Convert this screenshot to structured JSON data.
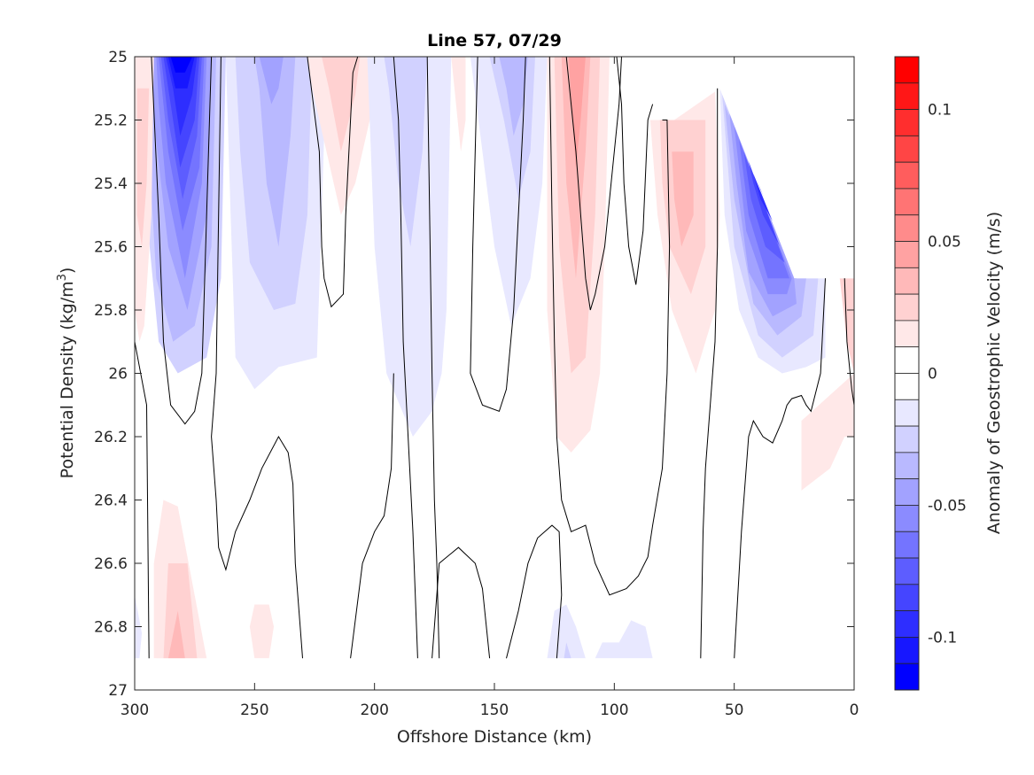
{
  "chart_data": {
    "type": "heatmap",
    "subtype": "filled-contour",
    "title": "Line 57, 07/29",
    "xlabel": "Offshore Distance (km)",
    "ylabel": "Potential Density (kg/m",
    "ylabel_sup": "3",
    "ylabel_end": ")",
    "xlim": [
      300,
      0
    ],
    "ylim": [
      25,
      27
    ],
    "y_reversed": true,
    "x_reversed": true,
    "xticks": [
      300,
      250,
      200,
      150,
      100,
      50,
      0
    ],
    "xtick_labels": [
      "300",
      "250",
      "200",
      "150",
      "100",
      "50",
      "0"
    ],
    "yticks": [
      25,
      25.2,
      25.4,
      25.6,
      25.8,
      26,
      26.2,
      26.4,
      26.6,
      26.8,
      27
    ],
    "ytick_labels": [
      "25",
      "25.2",
      "25.4",
      "25.6",
      "25.8",
      "26",
      "26.2",
      "26.4",
      "26.6",
      "26.8",
      "27"
    ],
    "grid": false,
    "colorbar": {
      "label": "Anomaly of Geostrophic Velocity (m/s)",
      "range": [
        -0.12,
        0.12
      ],
      "n_levels": 22,
      "ticks": [
        0.1,
        0.05,
        0,
        -0.05,
        -0.1
      ],
      "tick_labels": [
        "0.1",
        "0.05",
        "0",
        "-0.05",
        "-0.1"
      ],
      "colors_top_to_bottom": [
        "#ff0000",
        "#ff1717",
        "#ff2e2e",
        "#ff4545",
        "#ff5d5d",
        "#ff7474",
        "#ff8b8b",
        "#ffa2a2",
        "#ffb9b9",
        "#ffd1d1",
        "#ffe8e8",
        "#ffffff",
        "#ffffff",
        "#e8e8ff",
        "#d1d1ff",
        "#b9b9ff",
        "#a2a2ff",
        "#8b8bff",
        "#7474ff",
        "#5d5dff",
        "#4545ff",
        "#2e2eff",
        "#1717ff",
        "#0000ff"
      ],
      "placement": "right"
    },
    "zero_contour_color": "#000000",
    "features": [
      {
        "name": "strong negative core",
        "x_center_km": 280,
        "sigma_top": 25.0,
        "sigma_bottom": 26.0,
        "min_value": -0.12
      },
      {
        "name": "negative band",
        "x_center_km": 242,
        "sigma_top": 25.0,
        "sigma_bottom": 26.05,
        "min_value": -0.04
      },
      {
        "name": "positive band",
        "x_center_km": 215,
        "sigma_top": 25.0,
        "sigma_bottom": 25.5,
        "min_value": 0.02
      },
      {
        "name": "negative band",
        "x_center_km": 185,
        "sigma_top": 25.0,
        "sigma_bottom": 26.2,
        "min_value": -0.03
      },
      {
        "name": "negative band",
        "x_center_km": 143,
        "sigma_top": 25.0,
        "sigma_bottom": 26.0,
        "min_value": -0.04
      },
      {
        "name": "positive band",
        "x_center_km": 118,
        "sigma_top": 25.0,
        "sigma_bottom": 26.25,
        "min_value": 0.04
      },
      {
        "name": "positive band",
        "x_center_km": 72,
        "sigma_top": 25.2,
        "sigma_bottom": 26.0,
        "min_value": 0.04
      },
      {
        "name": "strong negative nearshore",
        "x_center_km": 40,
        "sigma_top": 25.1,
        "sigma_bottom": 26.0,
        "min_value": -0.12
      },
      {
        "name": "positive deep patch",
        "x_center_km": 280,
        "sigma_top": 26.4,
        "sigma_bottom": 26.9,
        "min_value": 0.04
      }
    ]
  }
}
